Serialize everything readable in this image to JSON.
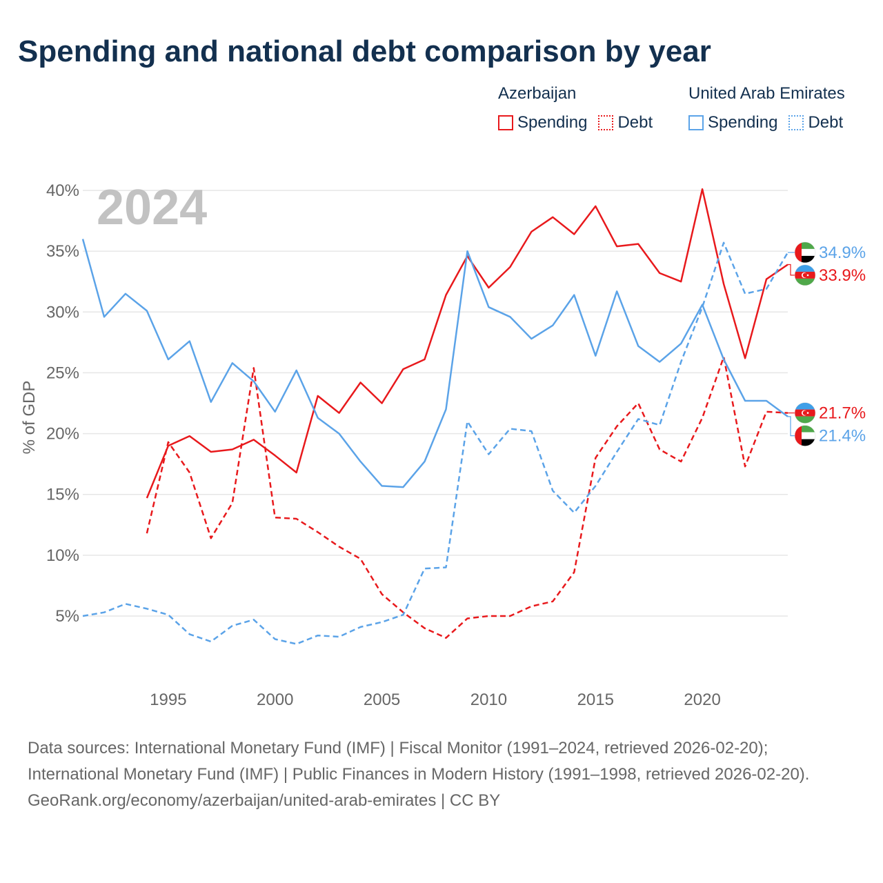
{
  "title": "Spending and national debt comparison by year",
  "legend": {
    "groups": [
      {
        "title": "Azerbaijan",
        "color": "#e8191c",
        "spending_label": "Spending",
        "debt_label": "Debt"
      },
      {
        "title": "United Arab Emirates",
        "color": "#5ba3e8",
        "spending_label": "Spending",
        "debt_label": "Debt"
      }
    ]
  },
  "year_watermark": "2024",
  "footer": {
    "sources": "Data sources: International Monetary Fund (IMF) | Fiscal Monitor (1991–2024, retrieved 2026-02-20); International Monetary Fund (IMF) | Public Finances in Modern History (1991–1998, retrieved 2026-02-20).",
    "credit": "GeoRank.org/economy/azerbaijan/united-arab-emirates | CC BY"
  },
  "chart_data": {
    "type": "line",
    "ylabel": "% of GDP",
    "xlim": [
      1991,
      2024
    ],
    "ylim": [
      0,
      40
    ],
    "y_ticks": [
      5,
      10,
      15,
      20,
      25,
      30,
      35,
      40
    ],
    "y_tick_labels": [
      "5%",
      "10%",
      "15%",
      "20%",
      "25%",
      "30%",
      "35%",
      "40%"
    ],
    "x_ticks": [
      1995,
      2000,
      2005,
      2010,
      2015,
      2020
    ],
    "x_tick_labels": [
      "1995",
      "2000",
      "2005",
      "2010",
      "2015",
      "2020"
    ],
    "series": [
      {
        "name": "Azerbaijan Spending",
        "country": "Azerbaijan",
        "metric": "Spending",
        "color": "#e8191c",
        "dashed": false,
        "flag": "azerbaijan-flag",
        "end_label": "33.9%",
        "points": [
          [
            1994,
            14.7
          ],
          [
            1995,
            19.0
          ],
          [
            1996,
            19.8
          ],
          [
            1997,
            18.5
          ],
          [
            1998,
            18.7
          ],
          [
            1999,
            19.5
          ],
          [
            2000,
            18.2
          ],
          [
            2001,
            16.8
          ],
          [
            2002,
            23.1
          ],
          [
            2003,
            21.7
          ],
          [
            2004,
            24.2
          ],
          [
            2005,
            22.5
          ],
          [
            2006,
            25.3
          ],
          [
            2007,
            26.1
          ],
          [
            2008,
            31.4
          ],
          [
            2009,
            34.6
          ],
          [
            2010,
            32.0
          ],
          [
            2011,
            33.7
          ],
          [
            2012,
            36.6
          ],
          [
            2013,
            37.8
          ],
          [
            2014,
            36.4
          ],
          [
            2015,
            38.7
          ],
          [
            2016,
            35.4
          ],
          [
            2017,
            35.6
          ],
          [
            2018,
            33.2
          ],
          [
            2019,
            32.5
          ],
          [
            2020,
            40.1
          ],
          [
            2021,
            32.3
          ],
          [
            2022,
            26.2
          ],
          [
            2023,
            32.7
          ],
          [
            2024,
            33.9
          ]
        ]
      },
      {
        "name": "Azerbaijan Debt",
        "country": "Azerbaijan",
        "metric": "Debt",
        "color": "#e8191c",
        "dashed": true,
        "flag": "azerbaijan-flag",
        "end_label": "21.7%",
        "points": [
          [
            1994,
            11.8
          ],
          [
            1995,
            19.3
          ],
          [
            1996,
            16.8
          ],
          [
            1997,
            11.4
          ],
          [
            1998,
            14.3
          ],
          [
            1999,
            25.4
          ],
          [
            2000,
            13.1
          ],
          [
            2001,
            13.0
          ],
          [
            2002,
            11.9
          ],
          [
            2003,
            10.7
          ],
          [
            2004,
            9.7
          ],
          [
            2005,
            6.8
          ],
          [
            2006,
            5.3
          ],
          [
            2007,
            4.0
          ],
          [
            2008,
            3.2
          ],
          [
            2009,
            4.8
          ],
          [
            2010,
            5.0
          ],
          [
            2011,
            5.0
          ],
          [
            2012,
            5.8
          ],
          [
            2013,
            6.2
          ],
          [
            2014,
            8.6
          ],
          [
            2015,
            18.0
          ],
          [
            2016,
            20.6
          ],
          [
            2017,
            22.5
          ],
          [
            2018,
            18.7
          ],
          [
            2019,
            17.7
          ],
          [
            2020,
            21.3
          ],
          [
            2021,
            26.3
          ],
          [
            2022,
            17.3
          ],
          [
            2023,
            21.8
          ],
          [
            2024,
            21.7
          ]
        ]
      },
      {
        "name": "United Arab Emirates Spending",
        "country": "United Arab Emirates",
        "metric": "Spending",
        "color": "#5ba3e8",
        "dashed": false,
        "flag": "uae-flag",
        "end_label": "21.4%",
        "points": [
          [
            1991,
            36.0
          ],
          [
            1992,
            29.6
          ],
          [
            1993,
            31.5
          ],
          [
            1994,
            30.1
          ],
          [
            1995,
            26.1
          ],
          [
            1996,
            27.6
          ],
          [
            1997,
            22.6
          ],
          [
            1998,
            25.8
          ],
          [
            1999,
            24.3
          ],
          [
            2000,
            21.8
          ],
          [
            2001,
            25.2
          ],
          [
            2002,
            21.3
          ],
          [
            2003,
            20.0
          ],
          [
            2004,
            17.7
          ],
          [
            2005,
            15.7
          ],
          [
            2006,
            15.6
          ],
          [
            2007,
            17.7
          ],
          [
            2008,
            22.0
          ],
          [
            2009,
            35.0
          ],
          [
            2010,
            30.4
          ],
          [
            2011,
            29.6
          ],
          [
            2012,
            27.8
          ],
          [
            2013,
            28.9
          ],
          [
            2014,
            31.4
          ],
          [
            2015,
            26.4
          ],
          [
            2016,
            31.7
          ],
          [
            2017,
            27.2
          ],
          [
            2018,
            25.9
          ],
          [
            2019,
            27.4
          ],
          [
            2020,
            30.6
          ],
          [
            2021,
            26.1
          ],
          [
            2022,
            22.7
          ],
          [
            2023,
            22.7
          ],
          [
            2024,
            21.4
          ]
        ]
      },
      {
        "name": "United Arab Emirates Debt",
        "country": "United Arab Emirates",
        "metric": "Debt",
        "color": "#5ba3e8",
        "dashed": true,
        "flag": "uae-flag",
        "end_label": "34.9%",
        "points": [
          [
            1991,
            5.0
          ],
          [
            1992,
            5.3
          ],
          [
            1993,
            6.0
          ],
          [
            1994,
            5.6
          ],
          [
            1995,
            5.1
          ],
          [
            1996,
            3.5
          ],
          [
            1997,
            2.9
          ],
          [
            1998,
            4.2
          ],
          [
            1999,
            4.7
          ],
          [
            2000,
            3.1
          ],
          [
            2001,
            2.7
          ],
          [
            2002,
            3.4
          ],
          [
            2003,
            3.3
          ],
          [
            2004,
            4.1
          ],
          [
            2005,
            4.5
          ],
          [
            2006,
            5.1
          ],
          [
            2007,
            8.9
          ],
          [
            2008,
            9.0
          ],
          [
            2009,
            21.0
          ],
          [
            2010,
            18.3
          ],
          [
            2011,
            20.4
          ],
          [
            2012,
            20.2
          ],
          [
            2013,
            15.3
          ],
          [
            2014,
            13.5
          ],
          [
            2015,
            15.7
          ],
          [
            2016,
            18.5
          ],
          [
            2017,
            21.2
          ],
          [
            2018,
            20.7
          ],
          [
            2019,
            25.9
          ],
          [
            2020,
            30.4
          ],
          [
            2021,
            35.7
          ],
          [
            2022,
            31.5
          ],
          [
            2023,
            31.9
          ],
          [
            2024,
            34.9
          ]
        ]
      }
    ]
  }
}
